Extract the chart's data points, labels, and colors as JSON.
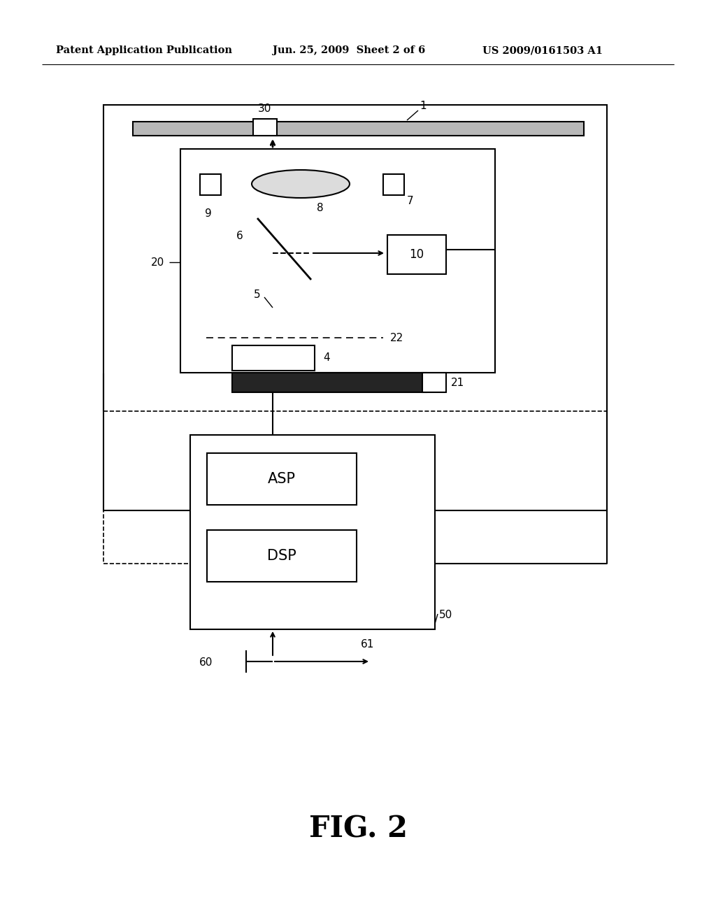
{
  "header_left": "Patent Application Publication",
  "header_center": "Jun. 25, 2009  Sheet 2 of 6",
  "header_right": "US 2009/0161503 A1",
  "figure_label": "FIG. 2",
  "bg_color": "#ffffff",
  "line_color": "#000000"
}
